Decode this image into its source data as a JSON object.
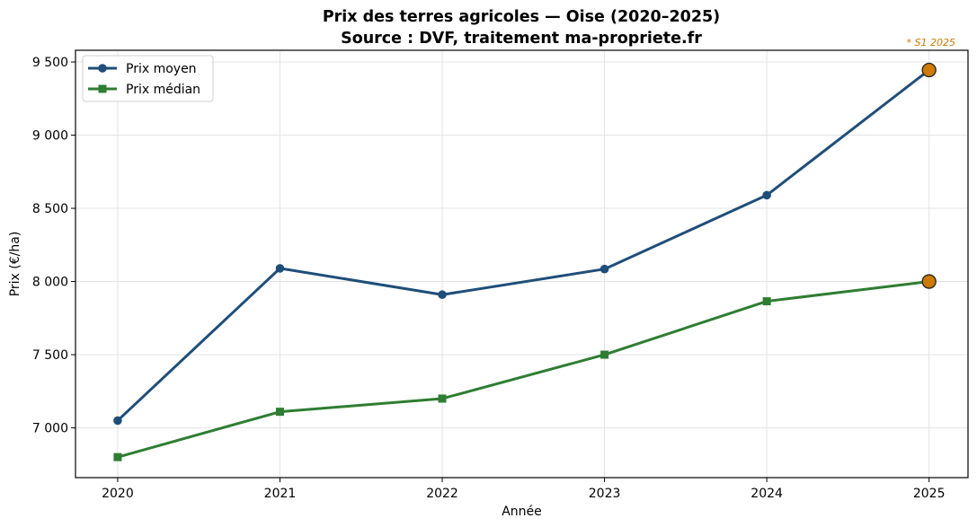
{
  "chart_data": {
    "type": "line",
    "title": "Prix des terres agricoles — Oise (2020–2025)",
    "subtitle": "Source : DVF, traitement ma-propriete.fr",
    "xlabel": "Année",
    "ylabel": "Prix (€/ha)",
    "categories": [
      "2020",
      "2021",
      "2022",
      "2023",
      "2024",
      "2025"
    ],
    "x": [
      2020,
      2021,
      2022,
      2023,
      2024,
      2025
    ],
    "series": [
      {
        "name": "Prix moyen",
        "color": "#1f4e79",
        "marker": "circle",
        "values": [
          7050,
          8090,
          7910,
          8085,
          8590,
          9445
        ]
      },
      {
        "name": "Prix médian",
        "color": "#2e7d32",
        "marker": "square",
        "values": [
          6800,
          7110,
          7200,
          7500,
          7865,
          8000
        ]
      }
    ],
    "yticks": [
      7000,
      7500,
      8000,
      8500,
      9000,
      9500
    ],
    "ytick_labels": [
      "7 000",
      "7 500",
      "8 000",
      "8 500",
      "9 000",
      "9 500"
    ],
    "ylim": [
      6660,
      9580
    ],
    "xlim": [
      2019.74,
      2025.24
    ],
    "grid": true,
    "legend_position": "upper left",
    "highlight": {
      "x": 2025,
      "color": "#cc7a00",
      "note": "* S1 2025"
    }
  }
}
